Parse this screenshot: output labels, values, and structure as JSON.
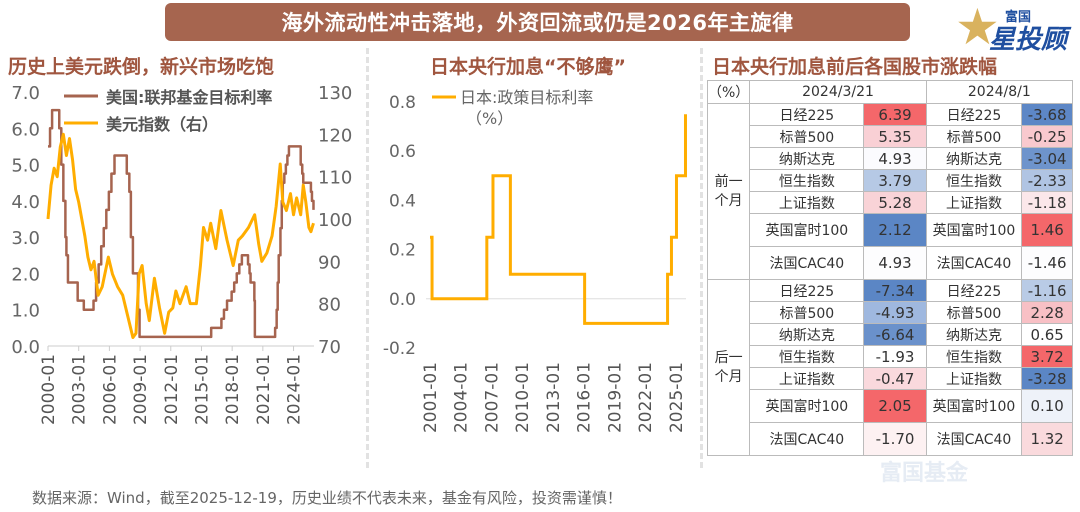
{
  "title": "海外流动性冲击落地，外资回流或仍是2026年主旋律",
  "logo": {
    "line1": "富国",
    "line2": "星投顾"
  },
  "watermark": "富国基金",
  "left": {
    "heading": "历史上美元跌倒，新兴市场吃饱"
  },
  "middle": {
    "heading": "日本央行加息“不够鹰”"
  },
  "right": {
    "heading": "日本央行加息前后各国股市涨跌幅"
  },
  "footer": "数据来源：Wind，截至2025-12-19，历史业绩不代表未来，基金有风险，投资需谨慎！",
  "chart_data": [
    {
      "type": "line",
      "title": "历史上美元跌倒，新兴市场吃饱",
      "ylim": [
        0,
        7
      ],
      "y2lim": [
        70,
        130
      ],
      "yticks": [
        "0.0",
        "1.0",
        "2.0",
        "3.0",
        "4.0",
        "5.0",
        "6.0",
        "7.0"
      ],
      "y2ticks": [
        "70",
        "80",
        "90",
        "100",
        "110",
        "120",
        "130"
      ],
      "xticks": [
        "2000-01",
        "2003-01",
        "2006-01",
        "2009-01",
        "2012-01",
        "2015-01",
        "2018-01",
        "2021-01",
        "2024-01"
      ],
      "xlim": [
        2000,
        2026
      ],
      "series": [
        {
          "name": "美国:联邦基金目标利率",
          "axis": "left",
          "color": "#a6644f",
          "step": true,
          "points": [
            [
              2000,
              5.5
            ],
            [
              2000.2,
              6.0
            ],
            [
              2000.4,
              6.5
            ],
            [
              2001.0,
              6.5
            ],
            [
              2001.1,
              6.0
            ],
            [
              2001.3,
              5.0
            ],
            [
              2001.5,
              4.0
            ],
            [
              2001.7,
              3.0
            ],
            [
              2001.8,
              2.5
            ],
            [
              2001.95,
              1.75
            ],
            [
              2002.9,
              1.25
            ],
            [
              2003.5,
              1.0
            ],
            [
              2004.45,
              1.25
            ],
            [
              2004.7,
              1.75
            ],
            [
              2004.95,
              2.25
            ],
            [
              2005.2,
              2.75
            ],
            [
              2005.45,
              3.25
            ],
            [
              2005.7,
              3.75
            ],
            [
              2005.95,
              4.25
            ],
            [
              2006.2,
              4.75
            ],
            [
              2006.5,
              5.25
            ],
            [
              2007.7,
              4.75
            ],
            [
              2007.95,
              4.25
            ],
            [
              2008.1,
              3.0
            ],
            [
              2008.3,
              2.0
            ],
            [
              2008.8,
              1.0
            ],
            [
              2008.95,
              0.25
            ],
            [
              2015.95,
              0.5
            ],
            [
              2016.95,
              0.75
            ],
            [
              2017.2,
              1.0
            ],
            [
              2017.5,
              1.25
            ],
            [
              2017.95,
              1.5
            ],
            [
              2018.2,
              1.75
            ],
            [
              2018.45,
              2.0
            ],
            [
              2018.7,
              2.25
            ],
            [
              2018.95,
              2.5
            ],
            [
              2019.55,
              2.25
            ],
            [
              2019.7,
              2.0
            ],
            [
              2019.8,
              1.75
            ],
            [
              2020.17,
              1.25
            ],
            [
              2020.22,
              0.25
            ],
            [
              2022.2,
              0.5
            ],
            [
              2022.35,
              1.0
            ],
            [
              2022.45,
              1.75
            ],
            [
              2022.55,
              2.5
            ],
            [
              2022.72,
              3.25
            ],
            [
              2022.85,
              4.0
            ],
            [
              2022.95,
              4.5
            ],
            [
              2023.1,
              4.75
            ],
            [
              2023.25,
              5.0
            ],
            [
              2023.4,
              5.25
            ],
            [
              2023.55,
              5.5
            ],
            [
              2024.7,
              5.0
            ],
            [
              2024.85,
              4.75
            ],
            [
              2024.95,
              4.5
            ],
            [
              2025.7,
              4.25
            ],
            [
              2025.8,
              4.0
            ],
            [
              2025.95,
              3.75
            ]
          ]
        },
        {
          "name": "美元指数（右）",
          "axis": "right",
          "color": "#ffad00",
          "step": false,
          "points": [
            [
              2000,
              100
            ],
            [
              2000.3,
              108
            ],
            [
              2000.6,
              112
            ],
            [
              2000.9,
              110
            ],
            [
              2001.2,
              117
            ],
            [
              2001.5,
              120
            ],
            [
              2001.8,
              115
            ],
            [
              2002.1,
              119
            ],
            [
              2002.4,
              114
            ],
            [
              2002.7,
              107
            ],
            [
              2003.0,
              104
            ],
            [
              2003.3,
              100
            ],
            [
              2003.6,
              96
            ],
            [
              2003.9,
              91
            ],
            [
              2004.2,
              88
            ],
            [
              2004.5,
              90
            ],
            [
              2004.9,
              82
            ],
            [
              2005.3,
              84
            ],
            [
              2005.9,
              91
            ],
            [
              2006.3,
              87
            ],
            [
              2006.8,
              84
            ],
            [
              2007.3,
              82
            ],
            [
              2007.8,
              77
            ],
            [
              2008.3,
              72
            ],
            [
              2008.6,
              73
            ],
            [
              2008.9,
              87
            ],
            [
              2009.2,
              89
            ],
            [
              2009.6,
              80
            ],
            [
              2009.9,
              76
            ],
            [
              2010.4,
              86
            ],
            [
              2010.9,
              79
            ],
            [
              2011.4,
              73
            ],
            [
              2011.8,
              78
            ],
            [
              2012.2,
              79
            ],
            [
              2012.5,
              83
            ],
            [
              2012.9,
              80
            ],
            [
              2013.5,
              84
            ],
            [
              2013.9,
              80
            ],
            [
              2014.5,
              80
            ],
            [
              2014.9,
              89
            ],
            [
              2015.2,
              98
            ],
            [
              2015.6,
              95
            ],
            [
              2015.9,
              99
            ],
            [
              2016.4,
              93
            ],
            [
              2016.9,
              102
            ],
            [
              2017.5,
              95
            ],
            [
              2018.1,
              89
            ],
            [
              2018.6,
              95
            ],
            [
              2019.0,
              96
            ],
            [
              2019.6,
              98
            ],
            [
              2020.2,
              101
            ],
            [
              2020.6,
              94
            ],
            [
              2020.9,
              90
            ],
            [
              2021.4,
              92
            ],
            [
              2021.9,
              96
            ],
            [
              2022.3,
              103
            ],
            [
              2022.7,
              113
            ],
            [
              2022.95,
              104
            ],
            [
              2023.3,
              102
            ],
            [
              2023.7,
              106
            ],
            [
              2024.0,
              101
            ],
            [
              2024.3,
              105
            ],
            [
              2024.7,
              101
            ],
            [
              2024.95,
              108
            ],
            [
              2025.2,
              104
            ],
            [
              2025.5,
              98
            ],
            [
              2025.7,
              97
            ],
            [
              2025.95,
              99
            ]
          ]
        }
      ]
    },
    {
      "type": "line",
      "title": "日本央行加息“不够鹰”",
      "ylim": [
        -0.2,
        0.8
      ],
      "yticks": [
        "-0.2",
        "0.0",
        "0.2",
        "0.4",
        "0.6",
        "0.8"
      ],
      "xticks": [
        "2001-01",
        "2004-01",
        "2007-01",
        "2010-01",
        "2013-01",
        "2016-01",
        "2019-01",
        "2022-01",
        "2025-01"
      ],
      "xlim": [
        2001,
        2026
      ],
      "series": [
        {
          "name": "日本:政策目标利率",
          "unit": "（%）",
          "color": "#ffad00",
          "step": true,
          "points": [
            [
              2001.0,
              0.25
            ],
            [
              2001.2,
              0.0
            ],
            [
              2006.55,
              0.25
            ],
            [
              2007.15,
              0.5
            ],
            [
              2008.85,
              0.1
            ],
            [
              2016.1,
              -0.1
            ],
            [
              2024.2,
              0.1
            ],
            [
              2024.58,
              0.25
            ],
            [
              2025.07,
              0.5
            ],
            [
              2025.95,
              0.75
            ]
          ]
        }
      ]
    },
    {
      "type": "table",
      "title": "日本央行加息前后各国股市涨跌幅",
      "unit": "（%）",
      "dates": [
        "2024/3/21",
        "2024/8/1"
      ],
      "groups": [
        {
          "label": "前一\n个月",
          "rows": [
            {
              "a": "日经225",
              "av": "6.39",
              "ac": "#f4676a",
              "b": "日经225",
              "bv": "-3.68",
              "bc": "#5d87c6"
            },
            {
              "a": "标普500",
              "av": "5.35",
              "ac": "#f9d0d5",
              "b": "标普500",
              "bv": "-0.25",
              "bc": "#f9c9ce"
            },
            {
              "a": "纳斯达克",
              "av": "4.93",
              "ac": "#fbfbfe",
              "b": "纳斯达克",
              "bv": "-3.04",
              "bc": "#6e94cc"
            },
            {
              "a": "恒生指数",
              "av": "3.79",
              "ac": "#b6c9e5",
              "b": "恒生指数",
              "bv": "-2.33",
              "bc": "#b0c4e3"
            },
            {
              "a": "上证指数",
              "av": "5.28",
              "ac": "#f9d3d7",
              "b": "上证指数",
              "bv": "-1.18",
              "bc": "#fbe7ea"
            },
            {
              "a": "英国富时100",
              "av": "2.12",
              "ac": "#5b86c5",
              "b": "英国富时100",
              "bv": "1.46",
              "bc": "#f4676a",
              "tall": true
            },
            {
              "a": "法国CAC40",
              "av": "4.93",
              "ac": "#fdfdfe",
              "b": "法国CAC40",
              "bv": "-1.46",
              "bc": "#fdfdfe",
              "tall": true
            }
          ]
        },
        {
          "label": "后一\n个月",
          "rows": [
            {
              "a": "日经225",
              "av": "-7.34",
              "ac": "#5b86c5",
              "b": "日经225",
              "bv": "-1.16",
              "bc": "#b9cbe6"
            },
            {
              "a": "标普500",
              "av": "-4.93",
              "ac": "#9fb8df",
              "b": "标普500",
              "bv": "2.28",
              "bc": "#f8c0c5"
            },
            {
              "a": "纳斯达克",
              "av": "-6.64",
              "ac": "#6a91cb",
              "b": "纳斯达克",
              "bv": "0.65",
              "bc": "#ffffff"
            },
            {
              "a": "恒生指数",
              "av": "-1.93",
              "ac": "#ffffff",
              "b": "恒生指数",
              "bv": "3.72",
              "bc": "#f4676a"
            },
            {
              "a": "上证指数",
              "av": "-0.47",
              "ac": "#fad9dd",
              "b": "上证指数",
              "bv": "-3.28",
              "bc": "#5b86c5"
            },
            {
              "a": "英国富时100",
              "av": "2.05",
              "ac": "#f4676a",
              "b": "英国富时100",
              "bv": "0.10",
              "bc": "#eef2f9",
              "tall": true
            },
            {
              "a": "法国CAC40",
              "av": "-1.70",
              "ac": "#fdf1f2",
              "b": "法国CAC40",
              "bv": "1.32",
              "bc": "#fadadd",
              "tall": true
            }
          ]
        }
      ]
    }
  ]
}
